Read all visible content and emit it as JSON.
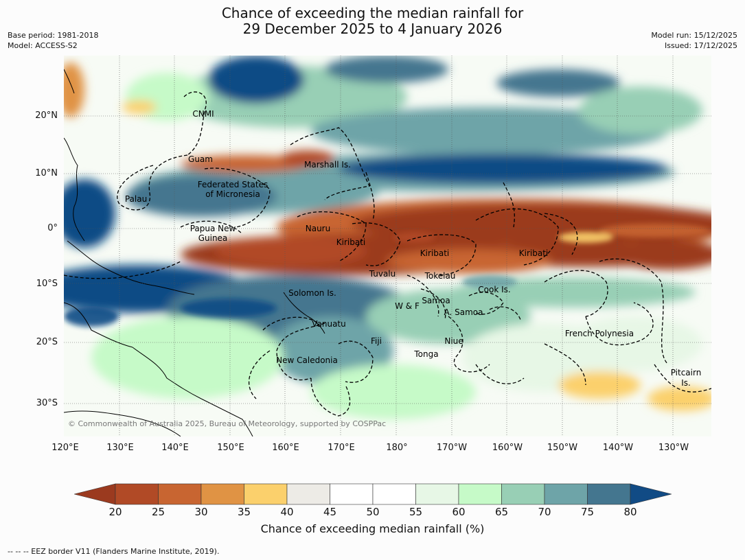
{
  "title": {
    "line1": "Chance of exceeding the median rainfall for",
    "line2": "29 December 2025 to 4 January 2026"
  },
  "meta_left": {
    "base_period": "Base period: 1981-2018",
    "model": "Model: ACCESS-S2"
  },
  "meta_right": {
    "model_run": "Model run: 15/12/2025",
    "issued": "Issued: 17/12/2025"
  },
  "lon_ticks": [
    "120°E",
    "130°E",
    "140°E",
    "150°E",
    "160°E",
    "170°E",
    "180°",
    "170°W",
    "160°W",
    "150°W",
    "140°W",
    "130°W"
  ],
  "lat_ticks": [
    "20°N",
    "10°N",
    "0°",
    "10°S",
    "20°S",
    "30°S"
  ],
  "regions": [
    {
      "name": "CNMI"
    },
    {
      "name": "Guam"
    },
    {
      "name": "Marshall Is."
    },
    {
      "name": "Federated States"
    },
    {
      "name": "of Micronesia"
    },
    {
      "name": "Palau"
    },
    {
      "name": "Papua New"
    },
    {
      "name": "Guinea"
    },
    {
      "name": "Nauru"
    },
    {
      "name": "Kiribati"
    },
    {
      "name": "Kiribati"
    },
    {
      "name": "Kiribati"
    },
    {
      "name": "Tuvalu"
    },
    {
      "name": "Tokelau"
    },
    {
      "name": "Cook Is."
    },
    {
      "name": "Solomon Is."
    },
    {
      "name": "Samoa"
    },
    {
      "name": "W & F"
    },
    {
      "name": "A. Samoa"
    },
    {
      "name": "Vanuatu"
    },
    {
      "name": "Fiji"
    },
    {
      "name": "Niue"
    },
    {
      "name": "French Polynesia"
    },
    {
      "name": "Tonga"
    },
    {
      "name": "New Caledonia"
    },
    {
      "name": "Pitcairn"
    },
    {
      "name": "Is."
    }
  ],
  "copyright": "© Commonwealth of Australia 2025, Bureau of Meteorology, supported by COSPPac",
  "colorbar": {
    "title": "Chance of exceeding median rainfall (%)",
    "ticks": [
      "20",
      "25",
      "30",
      "35",
      "40",
      "45",
      "50",
      "55",
      "60",
      "65",
      "70",
      "75",
      "80"
    ],
    "colors": [
      "#9b3a1f",
      "#b14a26",
      "#c86531",
      "#e09344",
      "#fbd06c",
      "#edebe6",
      "#ffffff",
      "#ffffff",
      "#e7f7e6",
      "#c6fac8",
      "#98cfb5",
      "#6ea4a8",
      "#44768f",
      "#114b85"
    ]
  },
  "footnote": "--  --  -- EEZ border V11 (Flanders Marine Institute, 2019)."
}
